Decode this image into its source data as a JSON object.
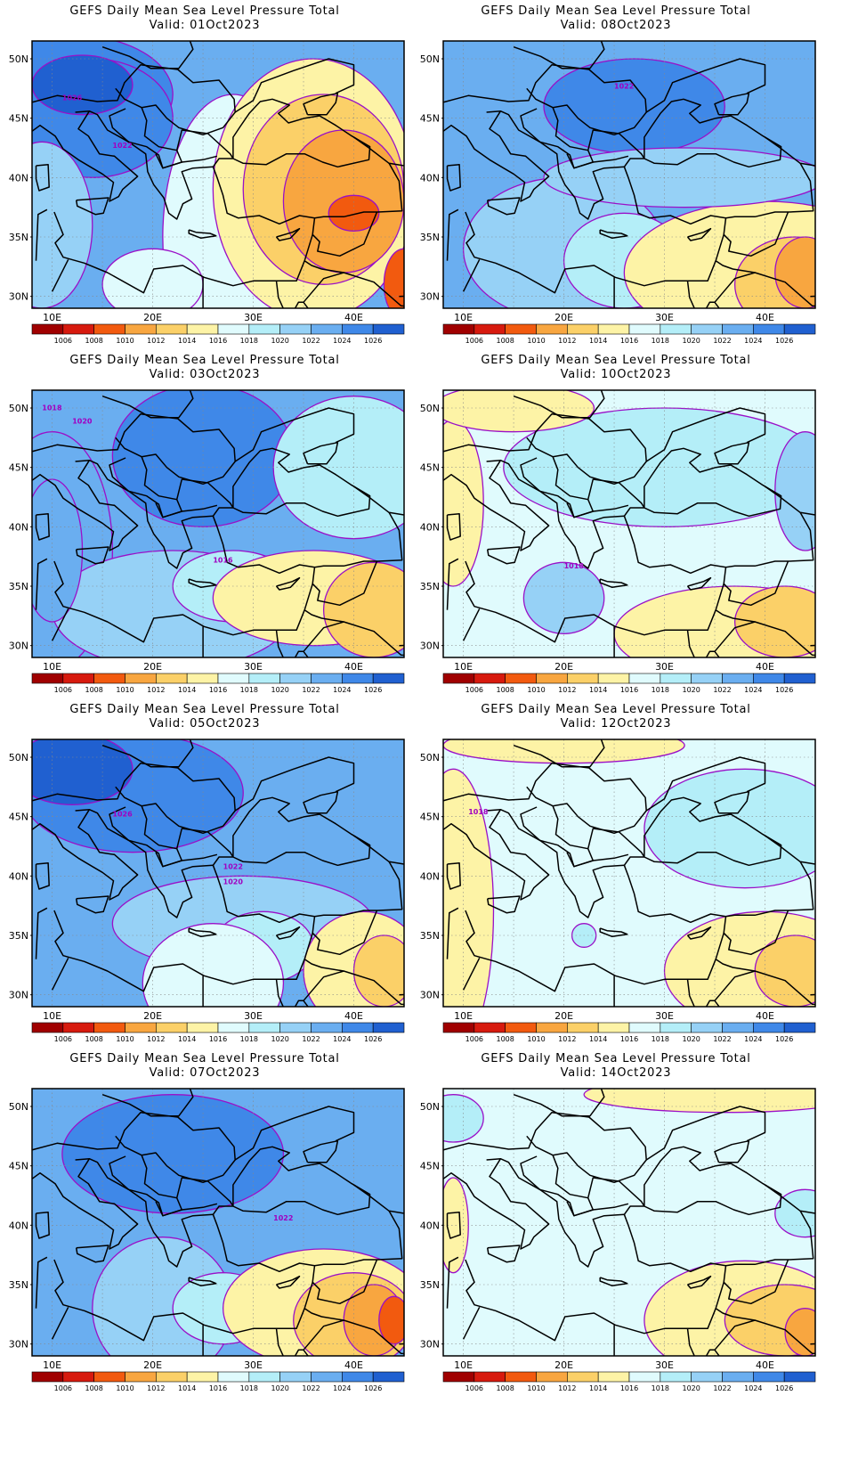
{
  "colorbar": {
    "levels": [
      "1006",
      "1008",
      "1010",
      "1012",
      "1014",
      "1016",
      "1018",
      "1020",
      "1022",
      "1024",
      "1026"
    ],
    "colors": [
      "#a00000",
      "#d71a0e",
      "#f25a0f",
      "#f8a640",
      "#fbd068",
      "#fdf3a6",
      "#e0fbfd",
      "#b4eef8",
      "#96d1f6",
      "#6aaef0",
      "#3f88e8",
      "#2060d0"
    ]
  },
  "axes": {
    "lon_labels": [
      "10E",
      "20E",
      "30E",
      "40E"
    ],
    "lat_labels": [
      "50N",
      "45N",
      "40N",
      "35N",
      "30N"
    ]
  },
  "panels": [
    {
      "title": "GEFS Daily Mean Sea Level Pressure Total",
      "valid": "Valid: 01Oct2023",
      "contour_labels": [
        "1026",
        "1022"
      ]
    },
    {
      "title": "GEFS Daily Mean Sea Level Pressure Total",
      "valid": "Valid: 08Oct2023",
      "contour_labels": [
        "1022"
      ]
    },
    {
      "title": "GEFS Daily Mean Sea Level Pressure Total",
      "valid": "Valid: 03Oct2023",
      "contour_labels": [
        "1018",
        "1020",
        "1016"
      ]
    },
    {
      "title": "GEFS Daily Mean Sea Level Pressure Total",
      "valid": "Valid: 10Oct2023",
      "contour_labels": [
        "1018"
      ]
    },
    {
      "title": "GEFS Daily Mean Sea Level Pressure Total",
      "valid": "Valid: 05Oct2023",
      "contour_labels": [
        "1026",
        "1022",
        "1020"
      ]
    },
    {
      "title": "GEFS Daily Mean Sea Level Pressure Total",
      "valid": "Valid: 12Oct2023",
      "contour_labels": [
        "1018"
      ]
    },
    {
      "title": "GEFS Daily Mean Sea Level Pressure Total",
      "valid": "Valid: 07Oct2023",
      "contour_labels": [
        "1022"
      ]
    },
    {
      "title": "GEFS Daily Mean Sea Level Pressure Total",
      "valid": "Valid: 14Oct2023",
      "contour_labels": []
    }
  ]
}
